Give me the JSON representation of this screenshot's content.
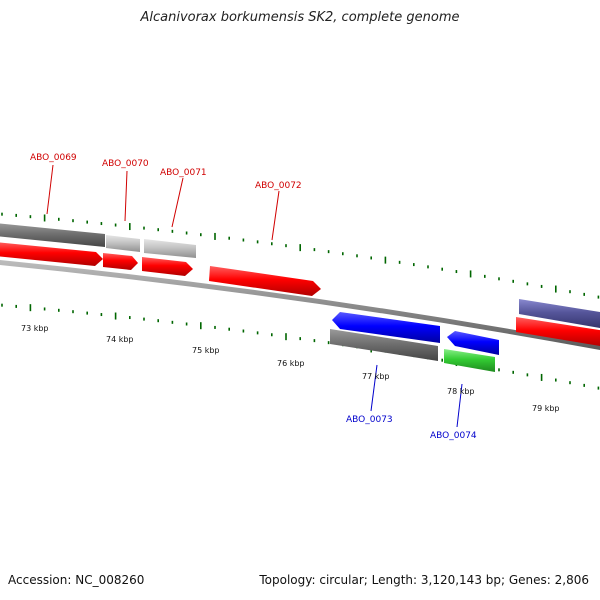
{
  "title": "Alcanivorax borkumensis SK2, complete genome",
  "footer": {
    "accession": "Accession: NC_008260",
    "summary": "Topology: circular; Length: 3,120,143 bp; Genes: 2,806"
  },
  "colors": {
    "label_forward": "#d00000",
    "label_reverse": "#0000cc",
    "tick": "#006600",
    "backbone": "#888888"
  },
  "scale_labels": [
    "73 kbp",
    "74 kbp",
    "75 kbp",
    "76 kbp",
    "77 kbp",
    "78 kbp",
    "79 kbp"
  ],
  "gene_labels": [
    {
      "text": "ABO_0069",
      "strand": "forward"
    },
    {
      "text": "ABO_0070",
      "strand": "forward"
    },
    {
      "text": "ABO_0071",
      "strand": "forward"
    },
    {
      "text": "ABO_0072",
      "strand": "forward"
    },
    {
      "text": "ABO_0073",
      "strand": "reverse"
    },
    {
      "text": "ABO_0074",
      "strand": "reverse"
    }
  ]
}
